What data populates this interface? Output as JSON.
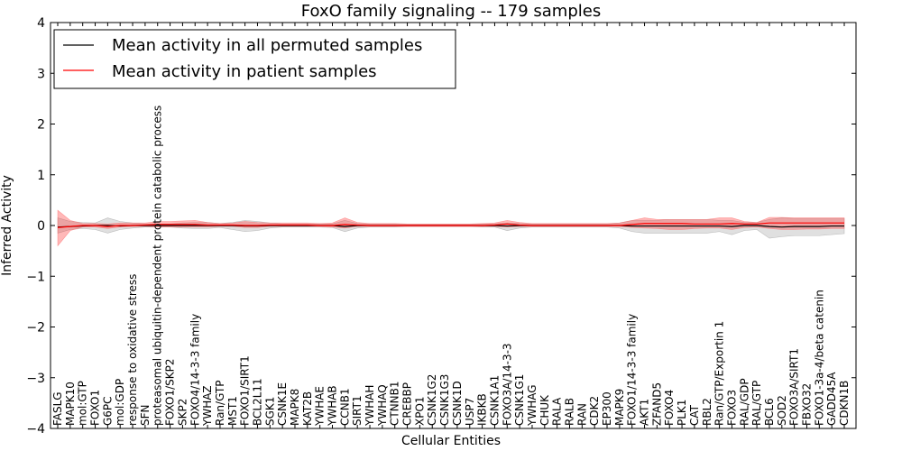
{
  "chart_data": {
    "type": "line",
    "title": "FoxO family signaling -- 179 samples",
    "xlabel": "Cellular Entities",
    "ylabel": "Inferred Activity",
    "ylim": [
      -4,
      4
    ],
    "yticks": [
      -4,
      -3,
      -2,
      -1,
      0,
      1,
      2,
      3,
      4
    ],
    "legend_position": "top-left",
    "categories": [
      "FASLG",
      "MAPK10",
      "mol:GTP",
      "FOXO1",
      "G6PC",
      "mol:GDP",
      "response to oxidative stress",
      "SFN",
      "proteasomal ubiquitin-dependent protein catabolic process",
      "FOXO1/SKP2",
      "SKP2",
      "FOXO4/14-3-3 family",
      "YWHAZ",
      "Ran/GTP",
      "MST1",
      "FOXO1/SIRT1",
      "BCL2L11",
      "SGK1",
      "CSNK1E",
      "MAPK8",
      "KAT2B",
      "YWHAE",
      "YWHAB",
      "CCNB1",
      "SIRT1",
      "YWHAH",
      "YWHAQ",
      "CTNNB1",
      "CREBBP",
      "XPO1",
      "CSNK1G2",
      "CSNK1G3",
      "CSNK1D",
      "USP7",
      "IKBKB",
      "CSNK1A1",
      "FOXO3A/14-3-3",
      "CSNK1G1",
      "YWHAG",
      "CHUK",
      "RALA",
      "RALB",
      "RAN",
      "CDK2",
      "EP300",
      "MAPK9",
      "FOXO1/14-3-3 family",
      "AKT1",
      "ZFAND5",
      "FOXO4",
      "PLK1",
      "CAT",
      "RBL2",
      "Ran/GTP/Exportin 1",
      "FOXO3",
      "RAL/GDP",
      "RAL/GTP",
      "BCL6",
      "SOD2",
      "FOXO3A/SIRT1",
      "FBXO32",
      "FOXO1-3a-4/beta catenin",
      "GADD45A",
      "CDKN1B"
    ],
    "series": [
      {
        "name": "Mean activity in all permuted samples",
        "color": "#000000",
        "values": [
          -0.03,
          -0.02,
          -0.01,
          0.0,
          0.0,
          -0.01,
          0.0,
          0.0,
          0.0,
          0.0,
          0.0,
          0.0,
          0.0,
          0.0,
          0.0,
          -0.01,
          -0.01,
          0.0,
          0.0,
          0.0,
          0.0,
          0.0,
          0.0,
          -0.02,
          0.0,
          0.0,
          0.0,
          0.0,
          0.0,
          0.0,
          0.0,
          0.0,
          0.0,
          0.0,
          0.0,
          0.0,
          -0.01,
          0.0,
          0.0,
          0.0,
          0.0,
          0.0,
          0.0,
          0.0,
          0.0,
          0.0,
          -0.01,
          -0.01,
          -0.01,
          -0.01,
          -0.01,
          -0.01,
          -0.01,
          -0.01,
          -0.02,
          0.0,
          0.0,
          -0.02,
          -0.03,
          -0.02,
          -0.02,
          -0.02,
          -0.01,
          -0.01
        ],
        "band_upper": [
          0.15,
          0.08,
          0.06,
          0.05,
          0.15,
          0.08,
          0.05,
          0.03,
          0.03,
          0.03,
          0.05,
          0.06,
          0.06,
          0.04,
          0.06,
          0.1,
          0.08,
          0.05,
          0.03,
          0.03,
          0.03,
          0.03,
          0.03,
          0.1,
          0.04,
          0.03,
          0.03,
          0.03,
          0.02,
          0.02,
          0.02,
          0.02,
          0.02,
          0.02,
          0.03,
          0.03,
          0.05,
          0.04,
          0.03,
          0.03,
          0.03,
          0.03,
          0.03,
          0.03,
          0.03,
          0.05,
          0.1,
          0.1,
          0.1,
          0.12,
          0.12,
          0.12,
          0.12,
          0.1,
          0.1,
          0.06,
          0.06,
          0.12,
          0.15,
          0.14,
          0.14,
          0.14,
          0.14,
          0.14
        ],
        "band_lower": [
          -0.15,
          -0.08,
          -0.06,
          -0.08,
          -0.15,
          -0.08,
          -0.05,
          -0.03,
          -0.03,
          -0.03,
          -0.05,
          -0.06,
          -0.06,
          -0.04,
          -0.08,
          -0.12,
          -0.1,
          -0.05,
          -0.03,
          -0.03,
          -0.03,
          -0.03,
          -0.04,
          -0.12,
          -0.05,
          -0.03,
          -0.03,
          -0.03,
          -0.02,
          -0.02,
          -0.02,
          -0.02,
          -0.02,
          -0.02,
          -0.03,
          -0.03,
          -0.1,
          -0.05,
          -0.03,
          -0.03,
          -0.03,
          -0.03,
          -0.03,
          -0.03,
          -0.03,
          -0.05,
          -0.12,
          -0.15,
          -0.15,
          -0.15,
          -0.15,
          -0.15,
          -0.15,
          -0.12,
          -0.18,
          -0.1,
          -0.08,
          -0.25,
          -0.22,
          -0.2,
          -0.2,
          -0.2,
          -0.18,
          -0.16
        ]
      },
      {
        "name": "Mean activity in patient samples",
        "color": "#ff0000",
        "values": [
          -0.04,
          -0.02,
          0.0,
          0.0,
          -0.02,
          0.0,
          0.0,
          0.01,
          0.02,
          0.02,
          0.02,
          0.02,
          0.01,
          0.01,
          0.01,
          0.0,
          0.0,
          0.01,
          0.01,
          0.01,
          0.01,
          0.0,
          0.0,
          0.02,
          0.01,
          0.0,
          0.0,
          0.0,
          0.0,
          0.0,
          0.0,
          0.0,
          0.0,
          0.0,
          0.0,
          0.01,
          0.03,
          0.01,
          0.0,
          0.0,
          0.0,
          0.0,
          0.0,
          0.0,
          0.0,
          0.0,
          0.02,
          0.04,
          0.04,
          0.04,
          0.04,
          0.03,
          0.03,
          0.03,
          0.04,
          0.03,
          0.03,
          0.05,
          0.05,
          0.05,
          0.05,
          0.05,
          0.05,
          0.05
        ],
        "band_upper": [
          0.3,
          0.1,
          0.04,
          0.04,
          0.03,
          0.05,
          0.05,
          0.05,
          0.08,
          0.08,
          0.09,
          0.1,
          0.06,
          0.04,
          0.05,
          0.08,
          0.06,
          0.05,
          0.05,
          0.05,
          0.05,
          0.04,
          0.05,
          0.15,
          0.06,
          0.04,
          0.04,
          0.04,
          0.03,
          0.03,
          0.03,
          0.03,
          0.03,
          0.03,
          0.04,
          0.05,
          0.1,
          0.06,
          0.04,
          0.04,
          0.04,
          0.04,
          0.04,
          0.04,
          0.04,
          0.05,
          0.1,
          0.15,
          0.12,
          0.12,
          0.12,
          0.12,
          0.12,
          0.15,
          0.15,
          0.08,
          0.06,
          0.16,
          0.16,
          0.15,
          0.15,
          0.15,
          0.15,
          0.15
        ],
        "band_lower": [
          -0.4,
          -0.1,
          -0.03,
          -0.03,
          -0.06,
          -0.03,
          -0.02,
          -0.02,
          -0.03,
          -0.03,
          -0.03,
          -0.03,
          -0.03,
          -0.02,
          -0.02,
          -0.04,
          -0.04,
          -0.02,
          -0.02,
          -0.02,
          -0.02,
          -0.02,
          -0.03,
          -0.05,
          -0.02,
          -0.02,
          -0.02,
          -0.02,
          -0.02,
          -0.02,
          -0.02,
          -0.02,
          -0.02,
          -0.02,
          -0.02,
          -0.02,
          -0.03,
          -0.02,
          -0.02,
          -0.02,
          -0.02,
          -0.02,
          -0.02,
          -0.02,
          -0.02,
          -0.02,
          -0.04,
          -0.05,
          -0.06,
          -0.08,
          -0.08,
          -0.06,
          -0.05,
          -0.05,
          -0.08,
          -0.04,
          -0.03,
          -0.06,
          -0.08,
          -0.08,
          -0.07,
          -0.07,
          -0.06,
          -0.06
        ]
      }
    ]
  }
}
